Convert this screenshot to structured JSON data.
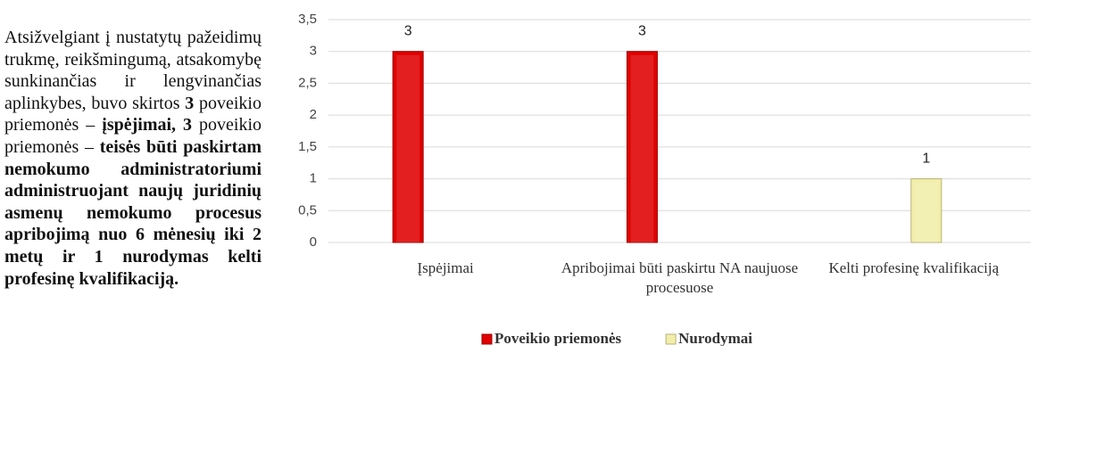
{
  "paragraph": {
    "runs": [
      {
        "text": "Atsižvelgiant į nustatytų pažeidimų trukmę, reikšmingumą, atsakomybę sunkinančias ir lengvinančias aplinkybes, buvo skirtos ",
        "bold": false
      },
      {
        "text": "3",
        "bold": true
      },
      {
        "text": " poveikio priemonės – ",
        "bold": false
      },
      {
        "text": "įspėjimai,",
        "bold": true
      },
      {
        "text": " ",
        "bold": false
      },
      {
        "text": "3",
        "bold": true
      },
      {
        "text": " poveikio priemonės – ",
        "bold": false
      },
      {
        "text": "teisės būti paskirtam nemokumo administratoriumi administruojant naujų juridinių asmenų nemokumo procesus apribojimą nuo 6 mėnesių iki 2 metų ir 1 nurodymas kelti profesinę kvalifikaciją.",
        "bold": true
      }
    ]
  },
  "chart_data": {
    "type": "bar",
    "categories": [
      "Įspėjimai",
      "Apribojimai būti paskirtu NA naujuose procesuose",
      "Kelti profesinę kvalifikaciją"
    ],
    "series": [
      {
        "name": "Poveikio priemonės",
        "color": "#e00000",
        "values": [
          3,
          3,
          null
        ]
      },
      {
        "name": "Nurodymai",
        "color": "#f2eeaa",
        "values": [
          null,
          null,
          1
        ]
      }
    ],
    "ylim": [
      0,
      3.5
    ],
    "yticks": [
      0,
      {
        "value": 0.5,
        "label": "0,5"
      },
      1,
      {
        "value": 1.5,
        "label": "1,5"
      },
      2,
      {
        "value": 2.5,
        "label": "2,5"
      },
      3,
      {
        "value": 3.5,
        "label": "3,5"
      }
    ],
    "grid": true,
    "legend": "bottom"
  }
}
